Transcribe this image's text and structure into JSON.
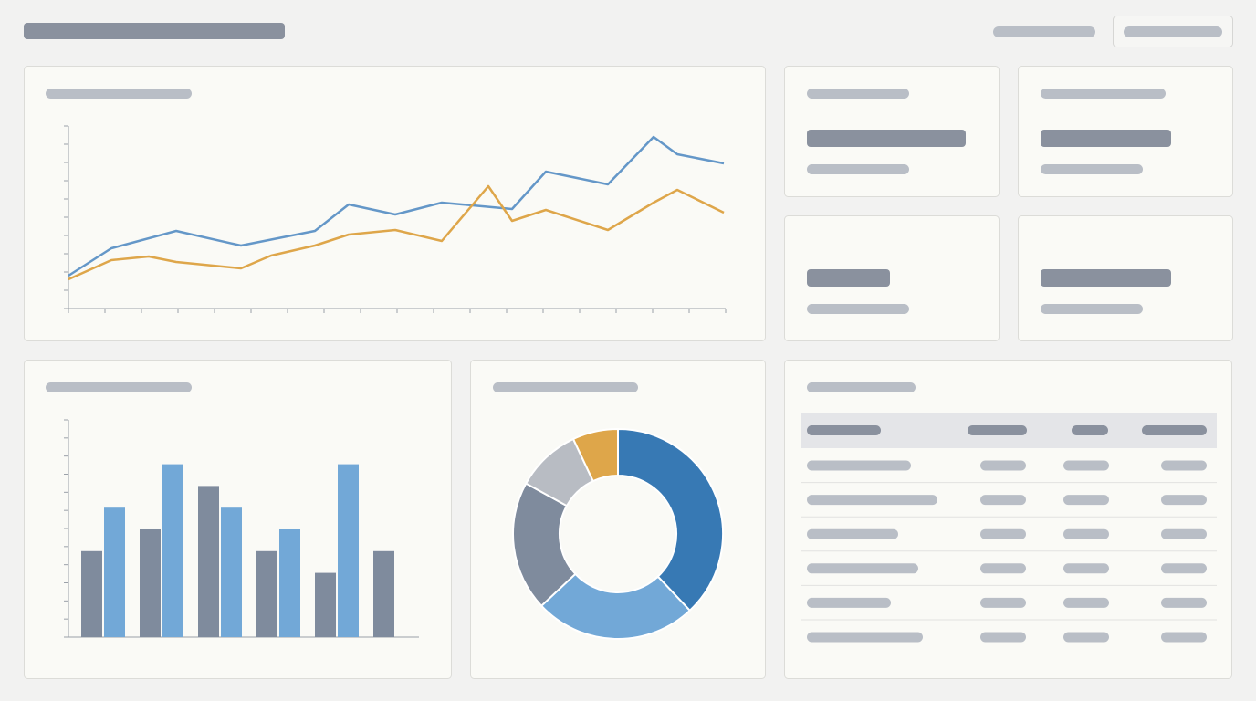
{
  "chart_data": [
    {
      "type": "line",
      "xlim": [
        0,
        720
      ],
      "ylim": [
        0,
        100
      ],
      "xticks": [
        0,
        40,
        80,
        120,
        160,
        200,
        240,
        280,
        320,
        360,
        400,
        440,
        480,
        520,
        560,
        600,
        640,
        680,
        720
      ],
      "yticks": [
        0,
        10,
        20,
        30,
        40,
        50,
        60,
        70,
        80,
        90,
        100
      ],
      "series": [
        {
          "color": "#6497c8",
          "x": [
            0,
            47,
            118,
            189,
            270,
            307,
            358,
            409,
            486,
            523,
            591,
            641,
            667,
            718
          ],
          "values": [
            18,
            33,
            42.5,
            34.5,
            42.5,
            57,
            51.5,
            58,
            54.5,
            75,
            68,
            94,
            84.5,
            79.5
          ]
        },
        {
          "color": "#dea64a",
          "x": [
            0,
            47,
            88,
            118,
            189,
            222,
            270,
            307,
            358,
            409,
            460,
            486,
            523,
            591,
            641,
            667,
            718
          ],
          "values": [
            16,
            26.5,
            28.5,
            25.5,
            22,
            29,
            34.5,
            40.5,
            43,
            37,
            67,
            48,
            54,
            43,
            58,
            65,
            52.5
          ]
        }
      ]
    },
    {
      "type": "bar",
      "categories": [
        null,
        null,
        null,
        null,
        null,
        null
      ],
      "ylim": [
        0,
        240
      ],
      "yticks": [
        0,
        20,
        40,
        60,
        80,
        100,
        120,
        140,
        160,
        180,
        200,
        220,
        240
      ],
      "series": [
        {
          "color": "#7f8b9d",
          "values": [
            95,
            119,
            167,
            95,
            71,
            95
          ]
        },
        {
          "color": "#72a8d7",
          "values": [
            143,
            191,
            143,
            119,
            191,
            null
          ]
        }
      ]
    },
    {
      "type": "pie",
      "values": [
        38,
        25,
        20,
        10,
        7
      ],
      "colors": [
        "#3779b4",
        "#72a8d7",
        "#7f8b9d",
        "#b8bcc3",
        "#dea64a"
      ]
    }
  ]
}
